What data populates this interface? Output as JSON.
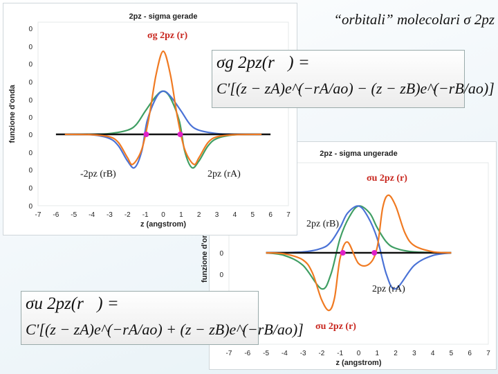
{
  "slide_title": "“orbitali” molecolari σ 2pz",
  "colors": {
    "blue": "#4a72d6",
    "orange": "#f07a22",
    "green": "#3f9e63",
    "black": "#111111",
    "nodes": "#e020c8",
    "red": "#c8261e"
  },
  "chart_data": [
    {
      "type": "line",
      "title": "2pz - sigma gerade",
      "xlabel": "z (angstrom)",
      "ylabel": "funzione d'onda",
      "xlim": [
        -7,
        7
      ],
      "xticks": [
        "-7",
        "-6",
        "-5",
        "-4",
        "-3",
        "-2",
        "-1",
        "0",
        "1",
        "2",
        "3",
        "4",
        "5",
        "6",
        "7"
      ],
      "yticks": [
        "0",
        "0",
        "0",
        "0",
        "0",
        "0",
        "0",
        "0",
        "0",
        "0",
        "0"
      ],
      "grid": false,
      "series": [
        {
          "color": "orange",
          "x": [
            -5.5,
            -4,
            -3,
            -2.5,
            -2,
            -1.7,
            -1.2,
            -0.8,
            -0.4,
            0,
            0.4,
            0.8,
            1.2,
            1.7,
            2,
            2.5,
            3,
            4,
            5.5
          ],
          "y": [
            0,
            -0.02,
            -0.15,
            -0.5,
            -1.4,
            -1.8,
            -0.9,
            1.0,
            3.6,
            5.0,
            3.6,
            1.0,
            -0.9,
            -1.8,
            -1.4,
            -0.5,
            -0.15,
            -0.02,
            0
          ]
        },
        {
          "color": "blue",
          "x": [
            -5.5,
            -4,
            -3,
            -2.5,
            -2,
            -1.6,
            -1.2,
            -0.9,
            -0.4,
            0,
            0.4,
            1,
            1.5,
            2,
            3,
            4,
            5.5
          ],
          "y": [
            0,
            -0.03,
            -0.25,
            -0.7,
            -1.6,
            -2.0,
            -1.0,
            0.8,
            2.2,
            2.6,
            2.3,
            1.4,
            0.6,
            0.25,
            0.05,
            0.01,
            0
          ]
        },
        {
          "color": "green",
          "x": [
            -5.5,
            -4,
            -3,
            -2,
            -1.5,
            -1,
            -0.4,
            0,
            0.4,
            0.9,
            1.2,
            1.6,
            2,
            2.5,
            3,
            4,
            5.5
          ],
          "y": [
            0,
            0.01,
            0.05,
            0.25,
            0.6,
            1.4,
            2.3,
            2.6,
            2.2,
            0.8,
            -1.0,
            -2.0,
            -1.6,
            -0.7,
            -0.25,
            -0.03,
            0
          ]
        },
        {
          "color": "black",
          "x": [
            -6,
            6
          ],
          "y": [
            0,
            0
          ]
        }
      ],
      "nodes": {
        "x": [
          -0.95,
          0.95
        ],
        "y": [
          0,
          0
        ]
      },
      "annotations": {
        "sigma_g": "σg 2pz (r)",
        "neg_2pz_rB": "-2pz (rB)",
        "pos_2pz_rA": "2pz (rA)"
      }
    },
    {
      "type": "line",
      "title": "2pz - sigma ungerade",
      "xlabel": "z (angstrom)",
      "ylabel": "funzione d'onda",
      "xlim": [
        -7,
        7
      ],
      "xticks": [
        "-7",
        "-6",
        "-5",
        "-4",
        "-3",
        "-2",
        "-1",
        "0",
        "1",
        "2",
        "3",
        "4",
        "5",
        "6",
        "7"
      ],
      "yticks": [
        "0",
        "0"
      ],
      "grid": false,
      "series": [
        {
          "color": "orange",
          "x": [
            -5,
            -4,
            -3,
            -2.5,
            -2,
            -1.6,
            -1.3,
            -1,
            -0.6,
            0,
            0.6,
            1,
            1.3,
            1.6,
            2,
            2.5,
            3,
            4,
            5
          ],
          "y": [
            0,
            -0.06,
            -0.4,
            -1.1,
            -2.6,
            -3.2,
            -2.5,
            -0.3,
            0.6,
            -0.6,
            -0.6,
            0.3,
            2.5,
            3.2,
            2.6,
            1.1,
            0.4,
            0.06,
            0
          ]
        },
        {
          "color": "blue",
          "x": [
            -5,
            -3,
            -2,
            -1.5,
            -1,
            -0.6,
            0,
            0.5,
            1,
            1.5,
            2,
            3,
            4,
            5
          ],
          "y": [
            0,
            0.05,
            0.25,
            0.6,
            1.4,
            2.2,
            2.6,
            2.0,
            0.8,
            -1.2,
            -2.0,
            -0.7,
            -0.15,
            0
          ]
        },
        {
          "color": "green",
          "x": [
            -5,
            -4,
            -3,
            -2,
            -1.5,
            -1,
            -0.5,
            0,
            0.6,
            1,
            1.5,
            2,
            3,
            5
          ],
          "y": [
            0,
            -0.15,
            -0.7,
            -2.0,
            -1.2,
            0.8,
            2.0,
            2.6,
            2.2,
            1.4,
            0.6,
            0.25,
            0.05,
            0
          ]
        },
        {
          "color": "black",
          "x": [
            -5,
            5
          ],
          "y": [
            0,
            0
          ]
        }
      ],
      "nodes": {
        "x": [
          -0.85,
          0.85
        ],
        "y": [
          0,
          0
        ]
      },
      "annotations": {
        "sigma_u_top": "σu 2pz (r)",
        "twopz_rB": "2pz (rB)",
        "twopz_rA": "2pz (rA)",
        "sigma_u_bottom": "σu 2pz (r)"
      }
    }
  ],
  "formulas": {
    "gerade": {
      "line1": "σg 2pz(r⃗) =",
      "line2": "C'[(z − zA)e^(−rA/ao) − (z − zB)e^(−rB/ao)]"
    },
    "ungerade": {
      "line1": "σu 2pz(r⃗) =",
      "line2": "C'[(z − zA)e^(−rA/ao) + (z − zB)e^(−rB/ao)]"
    }
  }
}
